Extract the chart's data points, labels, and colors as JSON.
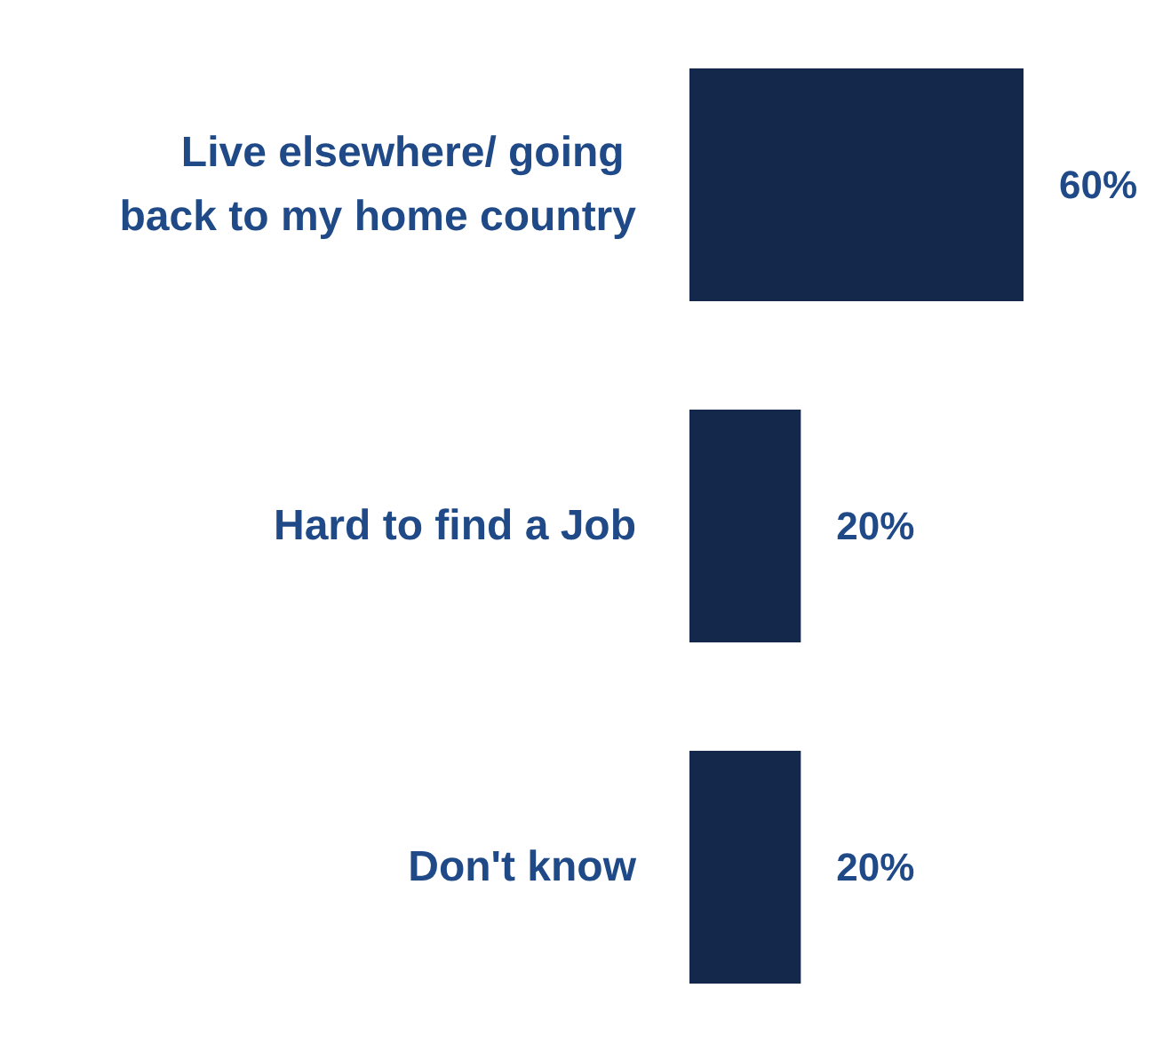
{
  "chart_data": {
    "type": "bar",
    "orientation": "horizontal",
    "categories": [
      "Live elsewhere/ going back to my home country",
      "Hard to find a Job",
      "Don't know"
    ],
    "values": [
      60,
      20,
      20
    ],
    "color": "#13284a",
    "value_labels": [
      "60%",
      "20%",
      "20%"
    ]
  }
}
